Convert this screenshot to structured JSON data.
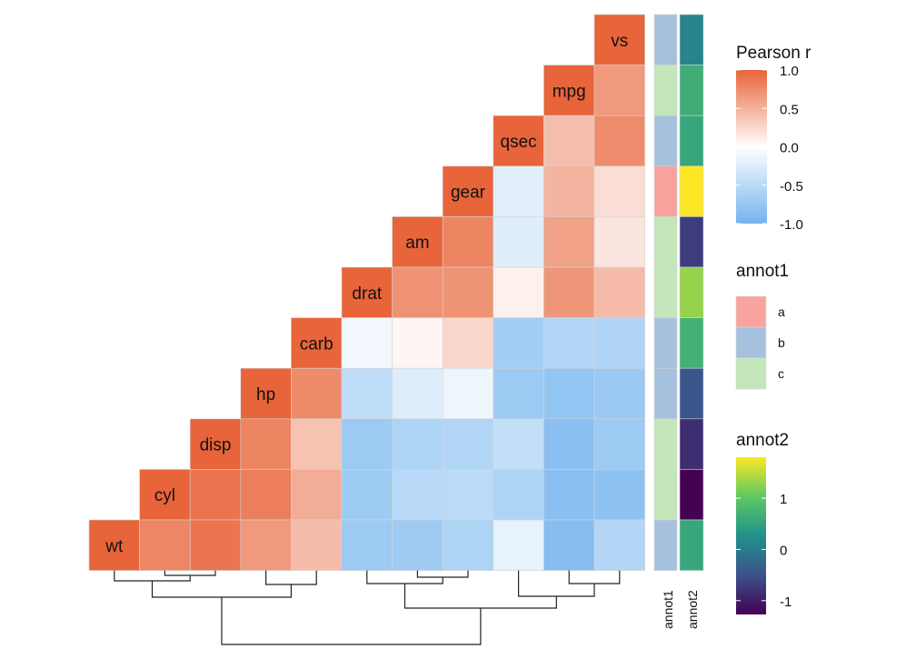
{
  "chart_data": {
    "type": "heatmap",
    "variables_rows_top_to_bottom": [
      "vs",
      "mpg",
      "qsec",
      "gear",
      "am",
      "drat",
      "carb",
      "hp",
      "disp",
      "cyl",
      "wt"
    ],
    "variables_columns_left_to_right": [
      "wt",
      "cyl",
      "disp",
      "hp",
      "carb",
      "drat",
      "am",
      "gear",
      "qsec",
      "mpg",
      "vs"
    ],
    "values_from_diagonal_rightwards": [
      [
        1
      ],
      [
        1,
        0.66
      ],
      [
        1,
        0.42,
        0.74
      ],
      [
        1,
        -0.21,
        0.48,
        0.21
      ],
      [
        1,
        0.79,
        -0.23,
        0.6,
        0.17
      ],
      [
        1,
        0.71,
        0.7,
        0.09,
        0.68,
        0.44
      ],
      [
        1,
        -0.09,
        0.06,
        0.27,
        -0.66,
        -0.55,
        -0.57
      ],
      [
        1,
        0.75,
        -0.45,
        -0.24,
        -0.13,
        -0.71,
        -0.78,
        -0.72
      ],
      [
        1,
        0.79,
        0.39,
        -0.71,
        -0.59,
        -0.56,
        -0.43,
        -0.85,
        -0.71
      ],
      [
        1,
        0.9,
        0.83,
        0.53,
        -0.7,
        -0.52,
        -0.49,
        -0.59,
        -0.85,
        -0.81
      ],
      [
        1,
        0.78,
        0.89,
        0.66,
        0.43,
        -0.71,
        -0.69,
        -0.58,
        -0.17,
        -0.87,
        -0.55
      ]
    ],
    "colors": {
      "positive": "#E8643A",
      "zero": "#FFFFFF",
      "negative": "#74B4EE"
    },
    "legend": {
      "title": "Pearson r",
      "ticks": [
        "1.0",
        "0.5",
        "0.0",
        "-0.5",
        "-1.0"
      ],
      "range": [
        -1,
        1
      ],
      "placement": "right"
    },
    "annotations": {
      "annot1": {
        "label": "annot1",
        "values": [
          "b",
          "c",
          "b",
          "a",
          "c",
          "c",
          "b",
          "b",
          "c",
          "c",
          "b"
        ],
        "legend_title": "annot1",
        "levels": [
          {
            "label": "a",
            "color": "#F8A39D"
          },
          {
            "label": "b",
            "color": "#A6C1DD"
          },
          {
            "label": "c",
            "color": "#C3E6BA"
          }
        ]
      },
      "annot2": {
        "label": "annot2",
        "values": [
          0.1,
          0.65,
          0.55,
          1.8,
          -0.7,
          1.3,
          0.7,
          -0.45,
          -0.85,
          -1.27,
          0.55
        ],
        "legend_title": "annot2",
        "ticks": [
          "1",
          "0",
          "-1"
        ],
        "range": [
          -1.27,
          1.8
        ],
        "palette": "viridis"
      }
    },
    "dendrogram": "column clustering shown below heatmap"
  }
}
